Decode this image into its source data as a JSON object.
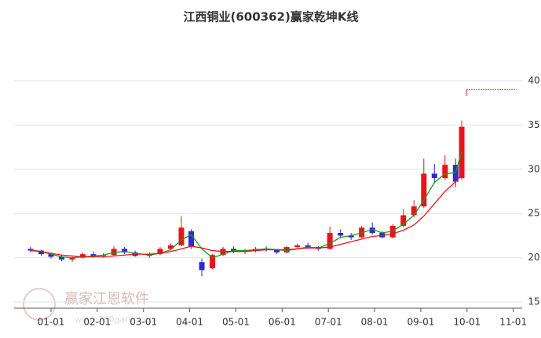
{
  "chart_data": {
    "type": "candlestick",
    "title": "江西铜业(600362)赢家乾坤K线",
    "dates": [
      "12-18",
      "12-25",
      "01-01",
      "01-08",
      "01-15",
      "01-22",
      "01-29",
      "02-05",
      "02-12",
      "02-19",
      "02-26",
      "03-05",
      "03-12",
      "03-19",
      "03-26",
      "04-02",
      "04-09",
      "04-16",
      "04-23",
      "04-30",
      "05-07",
      "05-14",
      "05-21",
      "05-28",
      "06-04",
      "06-11",
      "06-18",
      "06-25",
      "07-02",
      "07-09",
      "07-16",
      "07-23",
      "07-30",
      "08-06",
      "08-13",
      "08-20",
      "08-27",
      "09-03",
      "09-10",
      "09-17",
      "09-24",
      "09-28"
    ],
    "open": [
      21.0,
      20.8,
      20.4,
      20.1,
      19.8,
      20.0,
      20.4,
      20.2,
      20.3,
      21.0,
      20.6,
      20.2,
      20.4,
      21.0,
      21.4,
      23.0,
      19.5,
      18.8,
      20.3,
      21.0,
      20.7,
      20.8,
      21.0,
      20.9,
      20.6,
      21.2,
      21.4,
      21.2,
      21.0,
      22.8,
      22.5,
      22.3,
      23.4,
      22.8,
      22.3,
      23.6,
      24.8,
      25.8,
      29.5,
      29.0,
      30.5,
      29.0
    ],
    "high": [
      21.2,
      20.9,
      20.6,
      20.3,
      20.1,
      20.6,
      20.7,
      20.5,
      21.3,
      21.2,
      20.8,
      20.6,
      21.2,
      21.6,
      24.7,
      23.2,
      19.9,
      20.4,
      21.2,
      21.3,
      21.0,
      21.2,
      21.3,
      21.0,
      21.3,
      21.6,
      21.7,
      21.3,
      23.5,
      23.2,
      22.8,
      23.6,
      24.0,
      23.0,
      23.8,
      25.5,
      26.5,
      31.2,
      30.6,
      31.6,
      31.2,
      35.5
    ],
    "low": [
      20.6,
      20.2,
      19.9,
      19.6,
      19.5,
      19.9,
      20.0,
      20.0,
      20.2,
      20.4,
      20.1,
      20.0,
      20.3,
      20.8,
      21.3,
      21.0,
      17.9,
      18.7,
      20.2,
      20.5,
      20.4,
      20.6,
      20.7,
      20.4,
      20.5,
      21.0,
      21.0,
      20.8,
      20.9,
      22.2,
      22.0,
      22.2,
      22.6,
      22.2,
      22.2,
      23.4,
      24.6,
      25.6,
      28.4,
      28.8,
      28.0,
      28.8
    ],
    "close": [
      20.8,
      20.4,
      20.1,
      19.8,
      20.0,
      20.4,
      20.2,
      20.3,
      21.0,
      20.6,
      20.2,
      20.4,
      21.0,
      21.4,
      23.4,
      21.3,
      18.6,
      20.3,
      21.0,
      20.7,
      20.8,
      21.0,
      20.9,
      20.6,
      21.2,
      21.4,
      21.2,
      21.0,
      22.8,
      22.5,
      22.3,
      23.4,
      22.8,
      22.3,
      23.6,
      24.8,
      25.8,
      29.5,
      29.0,
      30.5,
      28.6,
      34.8
    ],
    "up_color": "#e8141c",
    "down_color": "#2a2ad0",
    "ma_lines": [
      {
        "color": "#1a9a1a",
        "values": [
          20.9,
          20.7,
          20.4,
          20.1,
          20.0,
          20.1,
          20.2,
          20.3,
          20.6,
          20.7,
          20.5,
          20.3,
          20.5,
          20.9,
          22.0,
          22.6,
          21.0,
          20.0,
          20.4,
          20.8,
          20.8,
          20.9,
          21.0,
          20.9,
          20.8,
          21.0,
          21.2,
          21.1,
          21.6,
          22.3,
          22.5,
          22.8,
          23.2,
          22.8,
          23.0,
          23.8,
          24.8,
          26.5,
          28.5,
          29.5,
          29.6,
          32.0
        ]
      },
      {
        "color": "#e8141c",
        "values": [
          20.8,
          20.7,
          20.5,
          20.3,
          20.2,
          20.1,
          20.1,
          20.1,
          20.2,
          20.3,
          20.4,
          20.4,
          20.5,
          20.7,
          21.0,
          21.3,
          21.1,
          20.8,
          20.7,
          20.7,
          20.7,
          20.8,
          20.9,
          20.9,
          20.9,
          21.0,
          21.1,
          21.1,
          21.2,
          21.5,
          21.8,
          22.1,
          22.4,
          22.5,
          22.7,
          23.1,
          23.7,
          24.7,
          26.1,
          27.5,
          28.6,
          29.4
        ]
      }
    ],
    "target_line": {
      "value": 39,
      "color": "#e8141c"
    },
    "ylim": [
      15,
      40
    ],
    "yticks": [
      15,
      20,
      25,
      30,
      35,
      40
    ],
    "grid": true,
    "xticks": [
      "01-01",
      "02-01",
      "03-01",
      "04-01",
      "05-01",
      "06-01",
      "07-01",
      "08-01",
      "09-01",
      "10-01",
      "11-01"
    ],
    "watermark": "赢家江恩软件",
    "watermark_url": "www.360gann.com"
  }
}
